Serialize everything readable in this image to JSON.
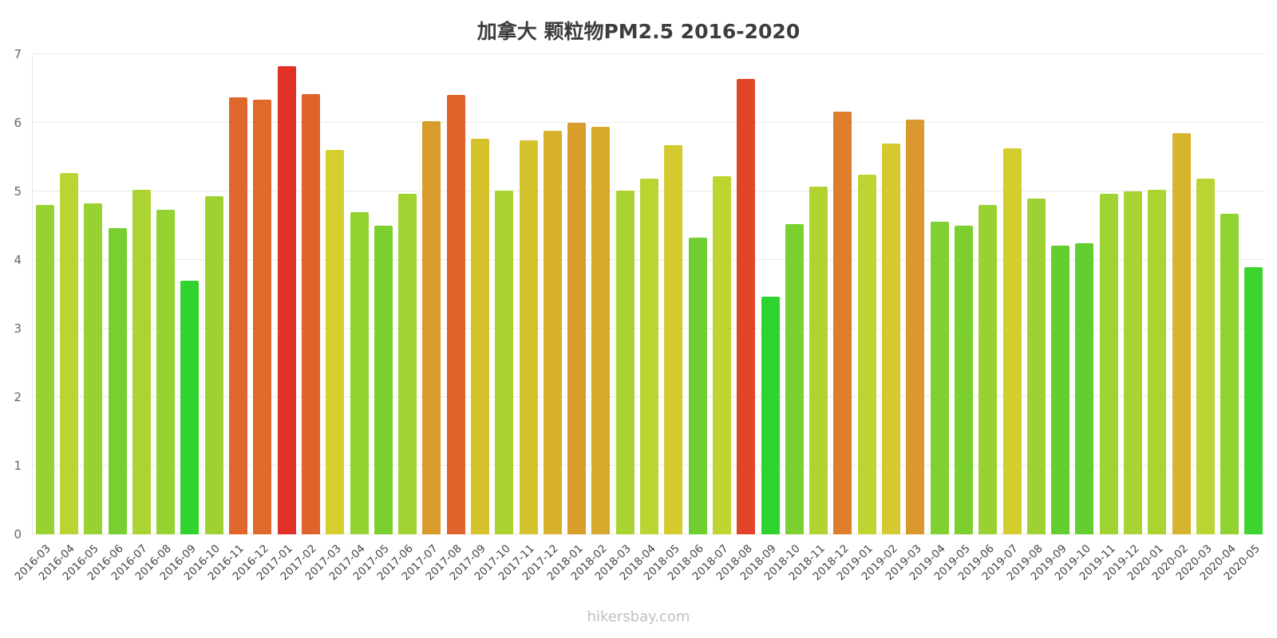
{
  "chart_data": {
    "type": "bar",
    "title": "加拿大 颗粒物PM2.5 2016-2020",
    "xlabel": "",
    "ylabel": "",
    "ylim": [
      0,
      7
    ],
    "y_ticks": [
      0,
      1,
      2,
      3,
      4,
      5,
      6,
      7
    ],
    "grid": "horizontal",
    "legend": "none",
    "categories": [
      "2016-03",
      "2016-04",
      "2016-05",
      "2016-06",
      "2016-07",
      "2016-08",
      "2016-09",
      "2016-10",
      "2016-11",
      "2016-12",
      "2017-01",
      "2017-02",
      "2017-03",
      "2017-04",
      "2017-05",
      "2017-06",
      "2017-07",
      "2017-08",
      "2017-09",
      "2017-10",
      "2017-11",
      "2017-12",
      "2018-01",
      "2018-02",
      "2018-03",
      "2018-04",
      "2018-05",
      "2018-06",
      "2018-07",
      "2018-08",
      "2018-09",
      "2018-10",
      "2018-11",
      "2018-12",
      "2019-01",
      "2019-02",
      "2019-03",
      "2019-04",
      "2019-05",
      "2019-06",
      "2019-07",
      "2019-08",
      "2019-09",
      "2019-10",
      "2019-11",
      "2019-12",
      "2020-01",
      "2020-02",
      "2020-03",
      "2020-04",
      "2020-05"
    ],
    "values": [
      4.8,
      5.27,
      4.82,
      4.46,
      5.02,
      4.73,
      3.7,
      4.93,
      6.37,
      6.34,
      6.83,
      6.42,
      5.6,
      4.7,
      4.5,
      4.96,
      6.02,
      6.41,
      5.77,
      5.01,
      5.75,
      5.88,
      6.0,
      5.94,
      5.01,
      5.19,
      5.68,
      4.33,
      5.22,
      6.64,
      3.47,
      4.52,
      5.07,
      6.16,
      5.24,
      5.7,
      6.05,
      4.56,
      4.5,
      4.8,
      5.63,
      4.9,
      4.21,
      4.24,
      4.96,
      5.0,
      5.02,
      5.85,
      5.19,
      4.67,
      3.9
    ],
    "colors": [
      "#9ad132",
      "#bcd431",
      "#9ad132",
      "#78d030",
      "#abd432",
      "#93d231",
      "#33d32f",
      "#9ed232",
      "#e0672b",
      "#e06a2b",
      "#e23127",
      "#e0632b",
      "#d4cf2e",
      "#92d231",
      "#7bd030",
      "#a0d232",
      "#d99b2c",
      "#e0642b",
      "#d5c22d",
      "#aad332",
      "#d5c32d",
      "#d7b12c",
      "#d99d2c",
      "#d8a82c",
      "#aad332",
      "#bad431",
      "#d4ca2e",
      "#6fcf30",
      "#bdd431",
      "#e2452a",
      "#2fd32f",
      "#7cd030",
      "#b0d332",
      "#de7e2a",
      "#bed431",
      "#d4c92e",
      "#d9992c",
      "#7ed130",
      "#7bd030",
      "#9ad132",
      "#d4cd2e",
      "#9dd232",
      "#62ce30",
      "#64ce30",
      "#a0d232",
      "#a9d332",
      "#abd432",
      "#d7b42d",
      "#bad431",
      "#90d231",
      "#3dd42f"
    ]
  },
  "footer": {
    "text": "hikersbay.com"
  }
}
